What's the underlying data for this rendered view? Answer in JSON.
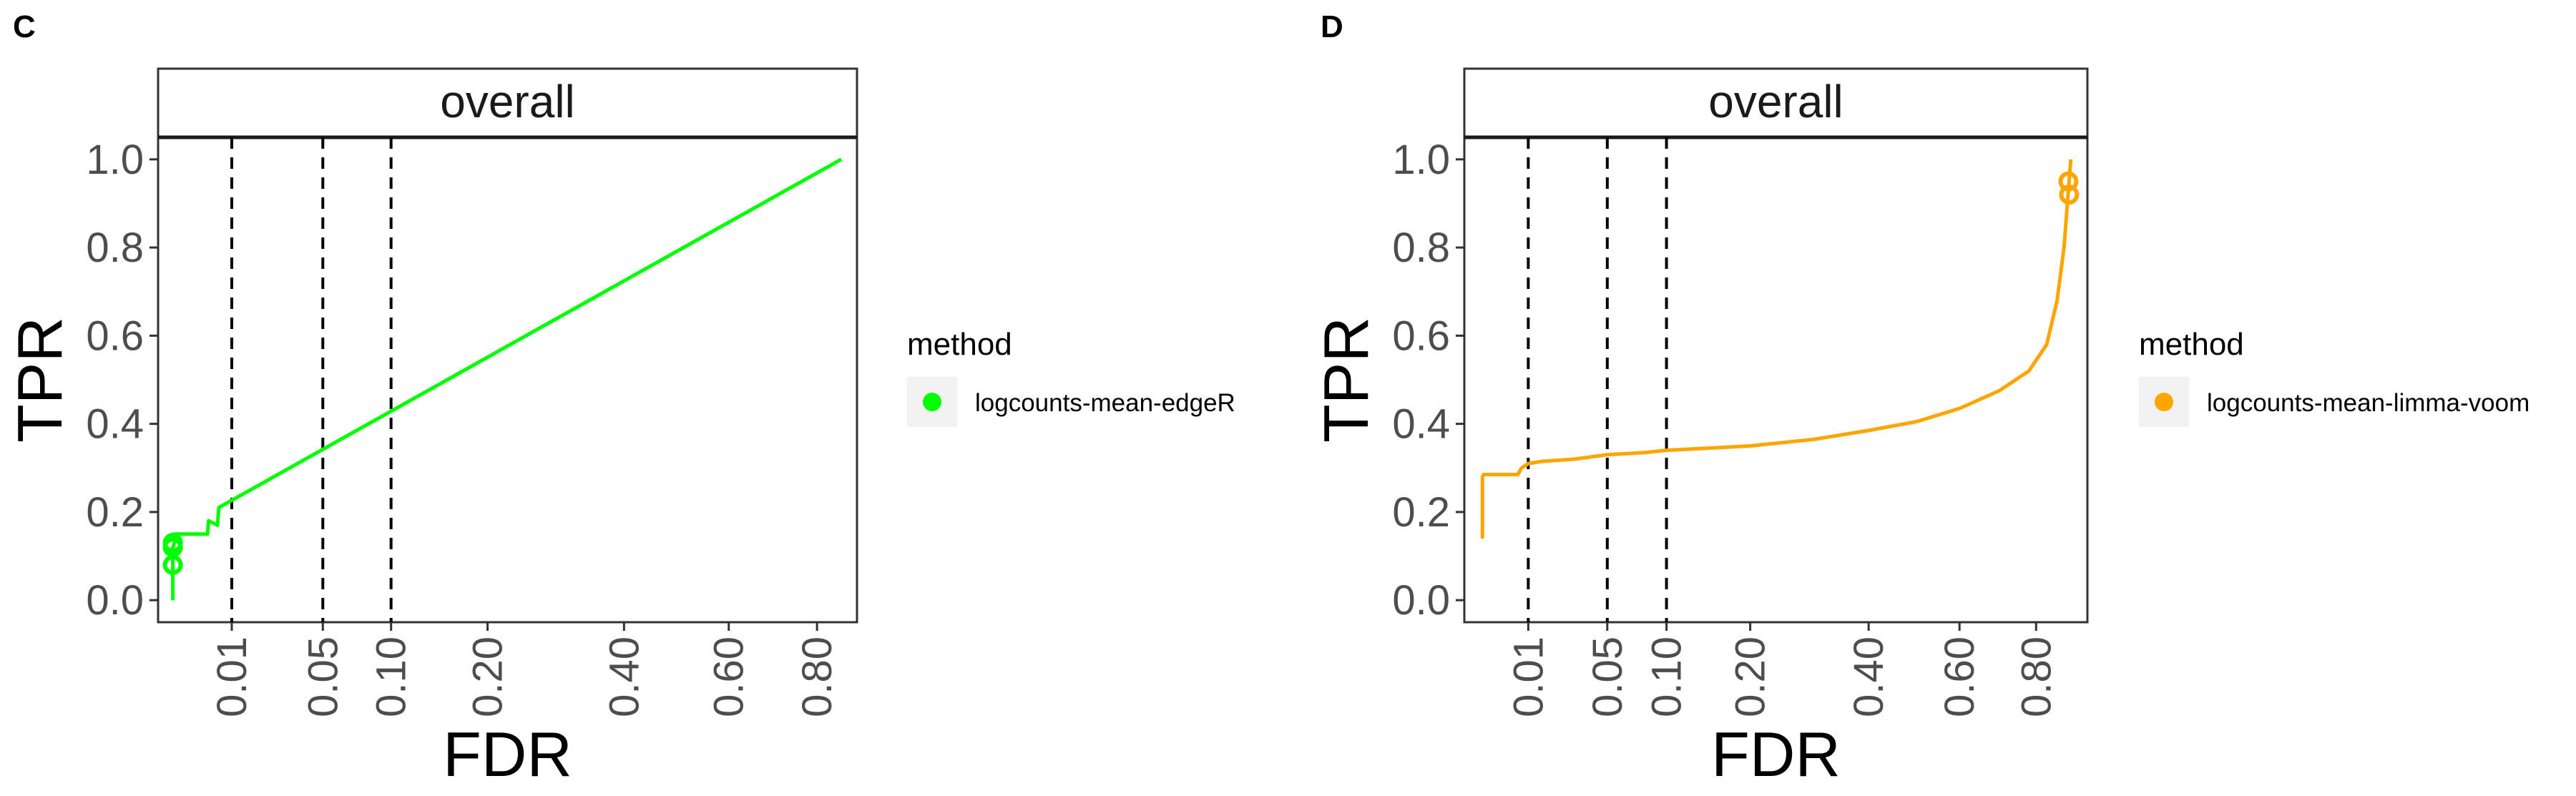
{
  "chart_data": [
    {
      "type": "line",
      "panel_label": "C",
      "facet": "overall",
      "xlabel": "FDR",
      "ylabel": "TPR",
      "x_scale": "sqrt",
      "x_ticks": [
        0.01,
        0.05,
        0.1,
        0.2,
        0.4,
        0.6,
        0.8
      ],
      "x_tick_labels": [
        "0.01",
        "0.05",
        "0.10",
        "0.20",
        "0.40",
        "0.60",
        "0.80"
      ],
      "y_ticks": [
        0.0,
        0.2,
        0.4,
        0.6,
        0.8,
        1.0
      ],
      "y_tick_labels": [
        "0.0",
        "0.2",
        "0.4",
        "0.6",
        "0.8",
        "1.0"
      ],
      "xlim": [
        0,
        0.9
      ],
      "ylim": [
        -0.05,
        1.05
      ],
      "grid": false,
      "legend_title": "method",
      "legend_position": "right",
      "vlines": [
        0.01,
        0.05,
        0.1
      ],
      "series": [
        {
          "name": "logcounts-mean-edgeR",
          "color": "#00ff00",
          "x": [
            0.0004,
            0.0004,
            0.0004,
            0.0005,
            0.0005,
            0.0006,
            0.0045,
            0.0047,
            0.0065,
            0.0068,
            0.86
          ],
          "y": [
            0.0,
            0.08,
            0.12,
            0.13,
            0.15,
            0.15,
            0.15,
            0.18,
            0.17,
            0.21,
            1.0
          ]
        }
      ],
      "points": [
        {
          "x": 0.0004,
          "y": 0.08
        },
        {
          "x": 0.0004,
          "y": 0.12
        },
        {
          "x": 0.0004,
          "y": 0.13
        }
      ]
    },
    {
      "type": "line",
      "panel_label": "D",
      "facet": "overall",
      "xlabel": "FDR",
      "ylabel": "TPR",
      "x_scale": "sqrt",
      "x_ticks": [
        0.01,
        0.05,
        0.1,
        0.2,
        0.4,
        0.6,
        0.8
      ],
      "x_tick_labels": [
        "0.01",
        "0.05",
        "0.10",
        "0.20",
        "0.40",
        "0.60",
        "0.80"
      ],
      "y_ticks": [
        0.0,
        0.2,
        0.4,
        0.6,
        0.8,
        1.0
      ],
      "y_tick_labels": [
        "0.0",
        "0.2",
        "0.4",
        "0.6",
        "0.8",
        "1.0"
      ],
      "xlim": [
        0,
        0.95
      ],
      "ylim": [
        -0.05,
        1.05
      ],
      "grid": false,
      "legend_title": "method",
      "legend_position": "right",
      "vlines": [
        0.01,
        0.05,
        0.1
      ],
      "series": [
        {
          "name": "logcounts-mean-limma-voom",
          "color": "#ffa500",
          "x": [
            0.0008,
            0.0008,
            0.0009,
            0.007,
            0.008,
            0.01,
            0.015,
            0.03,
            0.05,
            0.08,
            0.1,
            0.2,
            0.3,
            0.4,
            0.5,
            0.6,
            0.7,
            0.78,
            0.83,
            0.86,
            0.88,
            0.89,
            0.895,
            0.9
          ],
          "y": [
            0.14,
            0.28,
            0.285,
            0.285,
            0.3,
            0.31,
            0.315,
            0.32,
            0.33,
            0.335,
            0.34,
            0.35,
            0.365,
            0.385,
            0.405,
            0.435,
            0.475,
            0.52,
            0.58,
            0.68,
            0.8,
            0.9,
            0.95,
            1.0
          ]
        }
      ],
      "points": [
        {
          "x": 0.893,
          "y": 0.95
        },
        {
          "x": 0.895,
          "y": 0.92
        }
      ]
    }
  ]
}
